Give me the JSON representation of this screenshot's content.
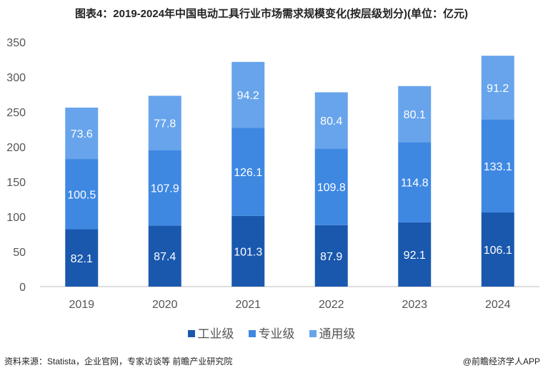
{
  "title": "图表4：2019-2024年中国电动工具行业市场需求规模变化(按层级划分)(单位：亿元)",
  "source": "资料来源：Statista，企业官网，专家访谈等 前瞻产业研究院",
  "credit": "@前瞻经济学人APP",
  "chart_data": {
    "type": "bar",
    "stacked": true,
    "title": "图表4：2019-2024年中国电动工具行业市场需求规模变化(按层级划分)(单位：亿元)",
    "categories": [
      "2019",
      "2020",
      "2021",
      "2022",
      "2023",
      "2024"
    ],
    "ylim": [
      0,
      350
    ],
    "yticks": [
      0,
      50,
      100,
      150,
      200,
      250,
      300,
      350
    ],
    "grid": false,
    "legend_position": "bottom",
    "series": [
      {
        "name": "工业级",
        "color": "#1a58ae",
        "values": [
          82.1,
          87.4,
          101.3,
          87.9,
          92.1,
          106.1
        ]
      },
      {
        "name": "专业级",
        "color": "#3e88e2",
        "values": [
          100.5,
          107.9,
          126.1,
          109.8,
          114.8,
          133.1
        ]
      },
      {
        "name": "通用级",
        "color": "#67a4eb",
        "values": [
          73.6,
          77.8,
          94.2,
          80.4,
          80.1,
          91.2
        ]
      }
    ]
  }
}
